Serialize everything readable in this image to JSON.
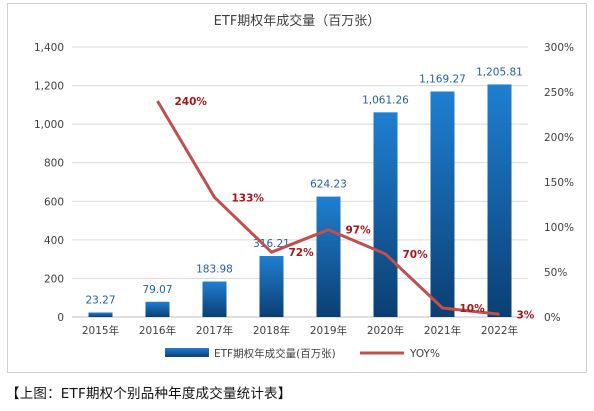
{
  "chart_data": {
    "type": "bar",
    "title": "ETF期权年成交量（百万张）",
    "categories": [
      "2015年",
      "2016年",
      "2017年",
      "2018年",
      "2019年",
      "2020年",
      "2021年",
      "2022年"
    ],
    "series": [
      {
        "name": "ETF期权年成交量(百万张)",
        "type": "bar",
        "axis": "left",
        "values": [
          23.27,
          79.07,
          183.98,
          316.21,
          624.23,
          1061.26,
          1169.27,
          1205.81
        ],
        "labels": [
          "23.27",
          "79.07",
          "183.98",
          "316.21",
          "624.23",
          "1,061.26",
          "1,169.27",
          "1,205.81"
        ],
        "color": "#1f7fd1",
        "color_dark": "#0b3f73"
      },
      {
        "name": "YOY%",
        "type": "line",
        "axis": "right",
        "values": [
          null,
          240,
          133,
          72,
          97,
          70,
          10,
          3
        ],
        "labels": [
          "",
          "240%",
          "133%",
          "72%",
          "97%",
          "70%",
          "10%",
          "3%"
        ],
        "color": "#c0504d"
      }
    ],
    "y_left": {
      "min": 0,
      "max": 1400,
      "ticks": [
        "0",
        "200",
        "400",
        "600",
        "800",
        "1,000",
        "1,200",
        "1,400"
      ]
    },
    "y_right": {
      "min": 0,
      "max": 300,
      "ticks": [
        "0%",
        "50%",
        "100%",
        "150%",
        "200%",
        "250%",
        "300%"
      ]
    },
    "grid": true,
    "legend_position": "bottom"
  },
  "caption": "【上图：ETF期权个别品种年度成交量统计表】"
}
